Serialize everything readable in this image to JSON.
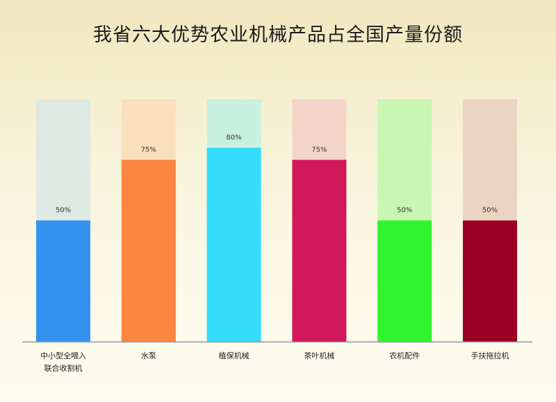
{
  "chart_data": {
    "type": "bar",
    "title": "我省六大优势农业机械产品占全国产量份额",
    "categories": [
      "中小型全喂入\n联合收割机",
      "水泵",
      "植保机械",
      "茶叶机械",
      "农机配件",
      "手扶拖拉机"
    ],
    "values": [
      50,
      75,
      80,
      75,
      50,
      50
    ],
    "value_labels": [
      "50%",
      "75%",
      "80%",
      "75%",
      "50%",
      "50%"
    ],
    "ylim": [
      0,
      100
    ],
    "colors": [
      "#3492ee",
      "#fb8541",
      "#35dcfb",
      "#d2175b",
      "#30f52e",
      "#9b0024"
    ],
    "track_colors": [
      "#dde9e2",
      "#f9dfbc",
      "#c8f0e0",
      "#f2d5c8",
      "#c9f6b3",
      "#ecd4c3"
    ],
    "axis_color": "#8d97a8",
    "grid": false,
    "legend": "none"
  }
}
